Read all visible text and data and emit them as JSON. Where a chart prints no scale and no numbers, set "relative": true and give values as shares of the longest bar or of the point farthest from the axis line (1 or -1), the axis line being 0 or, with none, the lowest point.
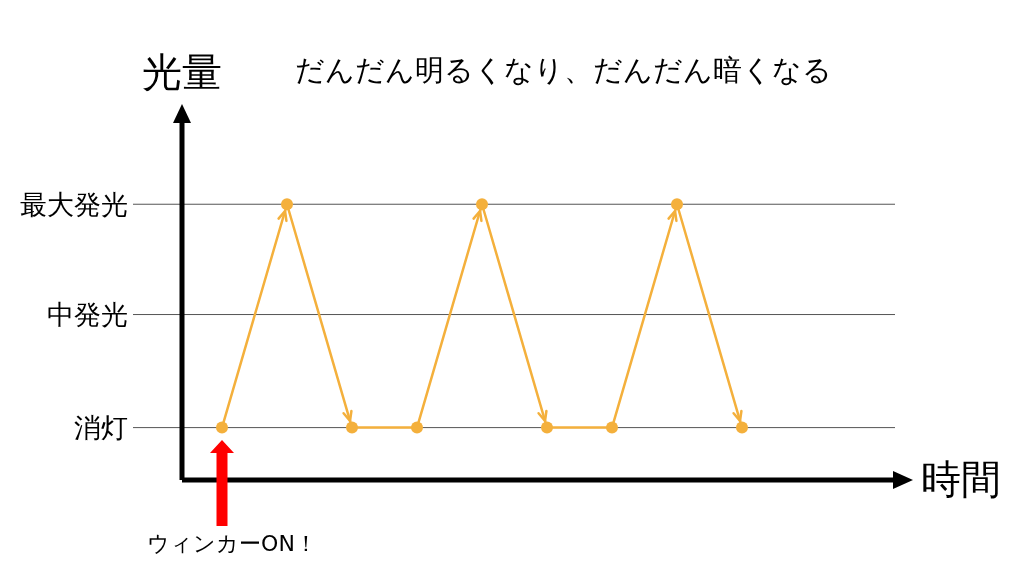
{
  "chart_data": {
    "type": "line",
    "title": "だんだん明るくなり、だんだん暗くなる",
    "xlabel": "時間",
    "ylabel": "光量",
    "categories": [
      null,
      null,
      null,
      null,
      null,
      null,
      null,
      null,
      null
    ],
    "series": [
      {
        "color": "#f4b03c",
        "values": [
          0.19,
          1,
          0.19,
          0.19,
          1,
          0.19,
          0.19,
          1,
          0.19
        ]
      }
    ],
    "relative": true,
    "ref_lines": [
      {
        "axis": "y",
        "value": 1,
        "label": "最大発光",
        "color": "#555555"
      },
      {
        "axis": "y",
        "value": 0.6,
        "label": "中発光",
        "color": "#555555"
      },
      {
        "axis": "y",
        "value": 0.19,
        "label": "消灯",
        "color": "#555555"
      }
    ],
    "marker": "circle",
    "line_style": "solid",
    "annotations": [
      "ウィンカーON！"
    ]
  }
}
